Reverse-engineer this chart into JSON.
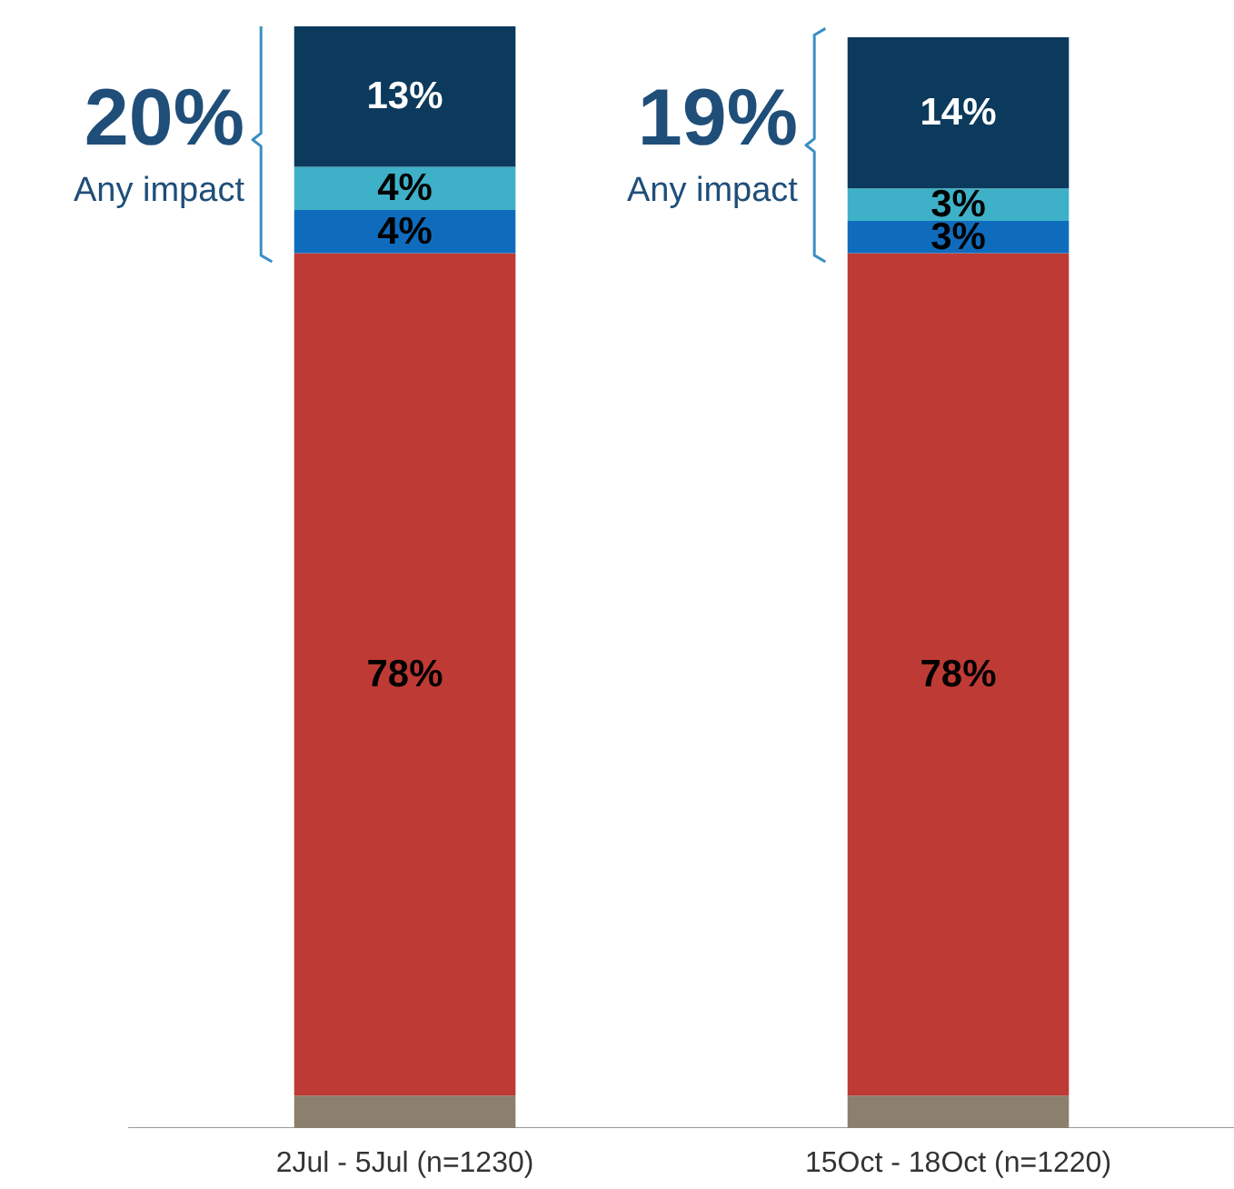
{
  "chart_data": {
    "type": "bar",
    "stacked": true,
    "categories": [
      "2Jul - 5Jul (n=1230)",
      "15Oct - 18Oct (n=1220)"
    ],
    "series": [
      {
        "color": "#8c7f6e",
        "values": [
          3,
          3
        ],
        "value_labels": [
          null,
          null
        ]
      },
      {
        "color": "#be3a34",
        "values": [
          78,
          78
        ],
        "value_labels": [
          "78%",
          "78%"
        ]
      },
      {
        "color": "#0f6cbd",
        "values": [
          4,
          3
        ],
        "value_labels": [
          "4%",
          "3%"
        ]
      },
      {
        "color": "#3eb1c8",
        "values": [
          4,
          3
        ],
        "value_labels": [
          "4%",
          "3%"
        ]
      },
      {
        "color": "#0b3a5c",
        "values": [
          13,
          14
        ],
        "value_labels": [
          "13%",
          "14%"
        ]
      }
    ],
    "ylim": [
      0,
      102
    ],
    "grid": false,
    "annotations": [
      "20%",
      "Any impact",
      "19%",
      "Any impact"
    ]
  }
}
